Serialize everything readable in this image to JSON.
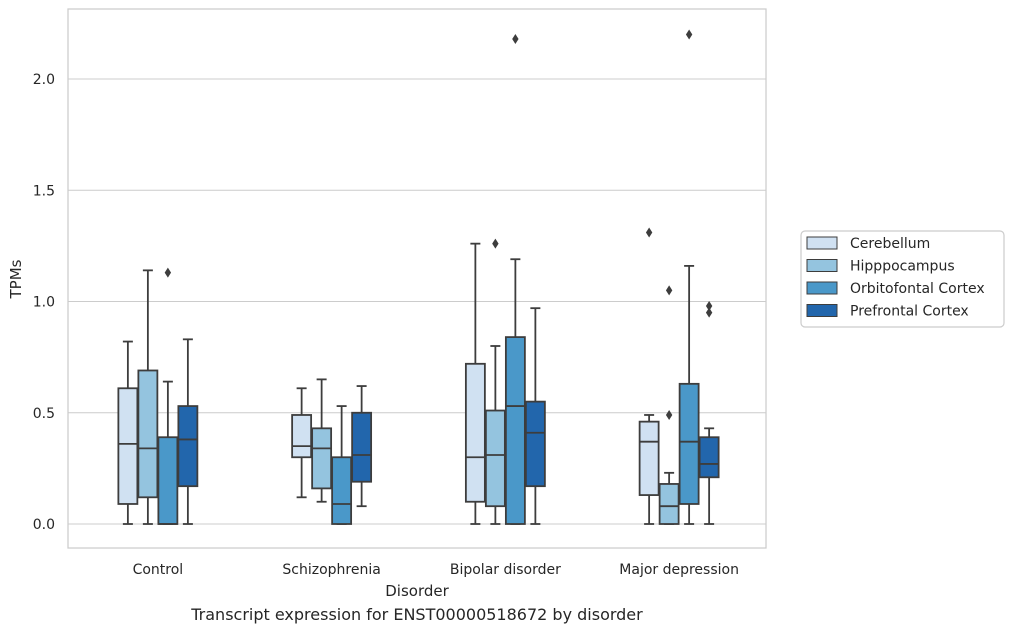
{
  "caption": "Transcript expression for ENST00000518672 by disorder",
  "chart_data": {
    "type": "box",
    "title": "",
    "xlabel": "Disorder",
    "ylabel": "TPMs",
    "ylim": [
      -0.1,
      2.32
    ],
    "yticks": [
      0.0,
      0.5,
      1.0,
      1.5,
      2.0
    ],
    "ytick_labels": [
      "0.0",
      "0.5",
      "1.0",
      "1.5",
      "2.0"
    ],
    "grid": "horizontal",
    "legend_position": "right",
    "categories": [
      "Control",
      "Schizophrenia",
      "Bipolar disorder",
      "Major depression"
    ],
    "series": [
      {
        "name": "Cerebellum",
        "color": "#d0e1f2",
        "boxes": [
          {
            "whisker_low": 0.0,
            "q1": 0.09,
            "median": 0.36,
            "q3": 0.61,
            "whisker_high": 0.82,
            "outliers": []
          },
          {
            "whisker_low": 0.12,
            "q1": 0.3,
            "median": 0.35,
            "q3": 0.49,
            "whisker_high": 0.61,
            "outliers": []
          },
          {
            "whisker_low": 0.0,
            "q1": 0.1,
            "median": 0.3,
            "q3": 0.72,
            "whisker_high": 1.26,
            "outliers": []
          },
          {
            "whisker_low": 0.0,
            "q1": 0.13,
            "median": 0.37,
            "q3": 0.46,
            "whisker_high": 0.49,
            "outliers": [
              1.31
            ]
          }
        ]
      },
      {
        "name": "Hipppocampus",
        "color": "#94c4df",
        "boxes": [
          {
            "whisker_low": 0.0,
            "q1": 0.12,
            "median": 0.34,
            "q3": 0.69,
            "whisker_high": 1.14,
            "outliers": []
          },
          {
            "whisker_low": 0.1,
            "q1": 0.16,
            "median": 0.34,
            "q3": 0.43,
            "whisker_high": 0.65,
            "outliers": []
          },
          {
            "whisker_low": 0.0,
            "q1": 0.08,
            "median": 0.31,
            "q3": 0.51,
            "whisker_high": 0.8,
            "outliers": [
              1.26
            ]
          },
          {
            "whisker_low": 0.0,
            "q1": 0.0,
            "median": 0.08,
            "q3": 0.18,
            "whisker_high": 0.23,
            "outliers": [
              0.49,
              1.05
            ]
          }
        ]
      },
      {
        "name": "Orbitofontal Cortex",
        "color": "#4a98c9",
        "boxes": [
          {
            "whisker_low": 0.0,
            "q1": 0.0,
            "median": 0.0,
            "q3": 0.39,
            "whisker_high": 0.64,
            "outliers": [
              1.13
            ]
          },
          {
            "whisker_low": 0.0,
            "q1": 0.0,
            "median": 0.09,
            "q3": 0.3,
            "whisker_high": 0.53,
            "outliers": []
          },
          {
            "whisker_low": 0.0,
            "q1": 0.0,
            "median": 0.53,
            "q3": 0.84,
            "whisker_high": 1.19,
            "outliers": [
              2.18
            ]
          },
          {
            "whisker_low": 0.0,
            "q1": 0.09,
            "median": 0.37,
            "q3": 0.63,
            "whisker_high": 1.16,
            "outliers": [
              2.2
            ]
          }
        ]
      },
      {
        "name": "Prefrontal Cortex",
        "color": "#2266ac",
        "boxes": [
          {
            "whisker_low": 0.0,
            "q1": 0.17,
            "median": 0.38,
            "q3": 0.53,
            "whisker_high": 0.83,
            "outliers": []
          },
          {
            "whisker_low": 0.08,
            "q1": 0.19,
            "median": 0.31,
            "q3": 0.5,
            "whisker_high": 0.62,
            "outliers": []
          },
          {
            "whisker_low": 0.0,
            "q1": 0.17,
            "median": 0.41,
            "q3": 0.55,
            "whisker_high": 0.97,
            "outliers": []
          },
          {
            "whisker_low": 0.0,
            "q1": 0.21,
            "median": 0.27,
            "q3": 0.39,
            "whisker_high": 0.43,
            "outliers": [
              0.95,
              0.98
            ]
          }
        ]
      }
    ]
  }
}
